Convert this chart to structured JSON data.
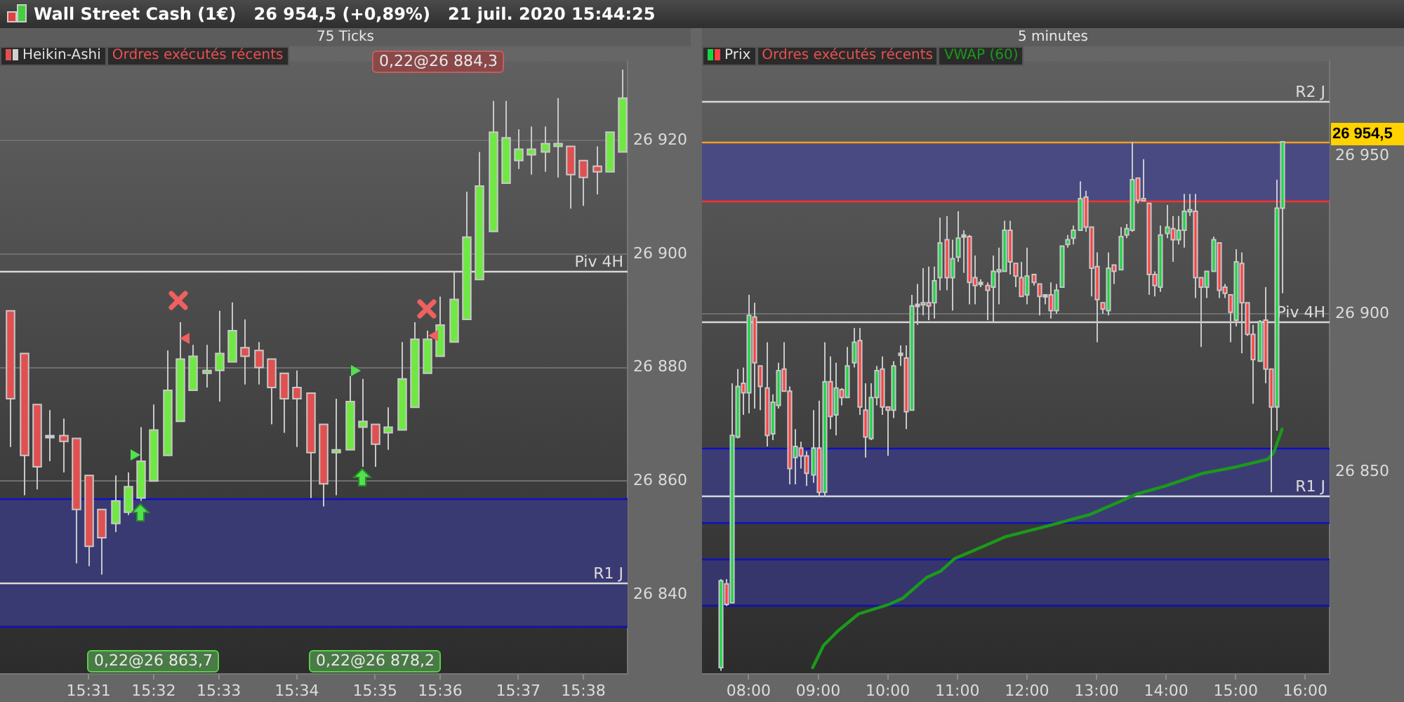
{
  "chart_data": [
    {
      "type": "candlestick",
      "title": "Wall Street Cash (1€)   26 954,5 (+0,89%)   21 juil. 2020 15:44:25",
      "subtitle": "75 Ticks",
      "categories": [
        null,
        null,
        null,
        null,
        null,
        null,
        "15:31",
        null,
        null,
        null,
        null,
        "15:32",
        null,
        null,
        null,
        null,
        "15:33",
        null,
        null,
        null,
        null,
        null,
        "15:34",
        null,
        null,
        null,
        null,
        null,
        "15:35",
        null,
        null,
        null,
        null,
        "15:36",
        null,
        null,
        null,
        null,
        null,
        "15:37",
        null,
        null,
        null,
        null,
        "15:38",
        null,
        null,
        null
      ],
      "series": [
        {
          "name": "Heikin-Ashi",
          "ohlc": [
            [
              26890,
              26890,
              26866,
              26874.5
            ],
            [
              26882.5,
              26882.5,
              26857.5,
              26864.5
            ],
            [
              26873.5,
              26873.5,
              26858.5,
              26862.5
            ],
            [
              26868,
              26872.5,
              26863.5,
              26868
            ],
            [
              26868,
              26871,
              26861.5,
              26867
            ],
            [
              26867.5,
              26867.5,
              26845.5,
              26855
            ],
            [
              26861,
              26861,
              26845,
              26848.5
            ],
            [
              26855,
              26855,
              26843.5,
              26850
            ],
            [
              26852.5,
              26861,
              26851,
              26856.5
            ],
            [
              26854.5,
              26861.5,
              26854,
              26859
            ],
            [
              26857,
              26869.5,
              26856.5,
              26863.5
            ],
            [
              26860,
              26873.5,
              26860,
              26869
            ],
            [
              26864.5,
              26883,
              26864.5,
              26876
            ],
            [
              26870.5,
              26888,
              26870.5,
              26881.5
            ],
            [
              26876,
              26884,
              26876,
              26882
            ],
            [
              26879,
              26884,
              26876.5,
              26879.5
            ],
            [
              26879.5,
              26890,
              26874,
              26882.5
            ],
            [
              26881,
              26891.5,
              26881,
              26886.5
            ],
            [
              26883.5,
              26888.5,
              26877,
              26882
            ],
            [
              26883,
              26884.5,
              26877,
              26880
            ],
            [
              26881.5,
              26881.5,
              26870,
              26876.5
            ],
            [
              26879,
              26879,
              26868.5,
              26874.5
            ],
            [
              26876.5,
              26879.5,
              26866,
              26874.5
            ],
            [
              26875.5,
              26875.5,
              26857,
              26865
            ],
            [
              26870,
              26870,
              26855.5,
              26859.5
            ],
            [
              26865,
              26874.5,
              26857.5,
              26865.5
            ],
            [
              26865.5,
              26878.5,
              26865.5,
              26874
            ],
            [
              26869.5,
              26878,
              26862.5,
              26870.5
            ],
            [
              26870,
              26870,
              26862.5,
              26866.5
            ],
            [
              26868.5,
              26873,
              26865.5,
              26869.5
            ],
            [
              26869,
              26884.5,
              26869,
              26878
            ],
            [
              26873,
              26888,
              26873,
              26885
            ],
            [
              26879,
              26886.5,
              26879,
              26885
            ],
            [
              26882,
              26892.5,
              26882,
              26887.5
            ],
            [
              26884.5,
              26897,
              26884.5,
              26892
            ],
            [
              26888.5,
              26911,
              26888.5,
              26903
            ],
            [
              26895.5,
              26918,
              26895.5,
              26912
            ],
            [
              26904,
              26927,
              26904,
              26921.5
            ],
            [
              26912.5,
              26927,
              26912.5,
              26920.5
            ],
            [
              26916.5,
              26922,
              26915,
              26918.5
            ],
            [
              26917.5,
              26922.5,
              26914,
              26918.5
            ],
            [
              26918,
              26922.5,
              26914.5,
              26919.5
            ],
            [
              26919,
              26927.5,
              26913.5,
              26919.5
            ],
            [
              26919,
              26919,
              26908,
              26914
            ],
            [
              26916.5,
              26916.5,
              26908.5,
              26913.5
            ],
            [
              26915.5,
              26919,
              26910.5,
              26914.5
            ],
            [
              26914.5,
              26921.5,
              26914.5,
              26921.5
            ],
            [
              26918,
              26932.5,
              26918,
              26927.5
            ]
          ],
          "colors": [
            "#e05050",
            "#e05050",
            "#e05050",
            "#d0d0d0",
            "#e05050",
            "#e05050",
            "#e05050",
            "#e05050",
            "#70e844",
            "#70e844",
            "#70e844",
            "#70e844",
            "#70e844",
            "#70e844",
            "#70e844",
            "#70e844",
            "#70e844",
            "#70e844",
            "#e05050",
            "#e05050",
            "#e05050",
            "#e05050",
            "#e05050",
            "#e05050",
            "#e05050",
            "#70e844",
            "#70e844",
            "#70e844",
            "#e05050",
            "#70e844",
            "#70e844",
            "#70e844",
            "#70e844",
            "#70e844",
            "#70e844",
            "#70e844",
            "#70e844",
            "#70e844",
            "#70e844",
            "#70e844",
            "#70e844",
            "#70e844",
            "#70e844",
            "#e05050",
            "#e05050",
            "#e05050",
            "#70e844",
            "#70e844"
          ]
        }
      ],
      "ylim": [
        26826,
        26934
      ],
      "yticks": [
        {
          "value": 26840,
          "label": "26 840"
        },
        {
          "value": 26860,
          "label": "26 860"
        },
        {
          "value": 26880,
          "label": "26 880"
        },
        {
          "value": 26900,
          "label": "26 900"
        },
        {
          "value": 26920,
          "label": "26 920"
        }
      ],
      "grid": "y",
      "legend": "top left",
      "ref_lines": [
        {
          "axis": "y",
          "value": 26897,
          "label": "Piv 4H"
        },
        {
          "axis": "y",
          "value": 26842,
          "label": "R1 J"
        },
        {
          "axis": "y",
          "value": 26857,
          "color": "#1010c0"
        },
        {
          "axis": "y",
          "value": 26834.5,
          "color": "#1010c0"
        }
      ],
      "bands": [
        {
          "axis": "y",
          "from": 26834.5,
          "to": 26857,
          "color": "#3a3a72"
        }
      ],
      "annotations": [
        "Ordres exécutés récents",
        "0,22@26 884,3",
        "0,22@26 863,7",
        "0,22@26 878,2"
      ]
    },
    {
      "type": "candlestick",
      "subtitle": "5 minutes",
      "x": [
        7.5833,
        7.6667,
        7.75,
        7.8333,
        7.9167,
        8,
        8.0833,
        8.1667,
        8.25,
        8.3333,
        8.4167,
        8.5,
        8.5833,
        8.6667,
        8.75,
        8.8333,
        8.9167,
        9,
        9.0833,
        9.1667,
        9.25,
        9.3333,
        9.4167,
        9.5,
        9.5833,
        9.6667,
        9.75,
        9.8333,
        9.9167,
        10,
        10.0833,
        10.1667,
        10.25,
        10.3333,
        10.4167,
        10.5,
        10.5833,
        10.6667,
        10.75,
        10.8333,
        10.9167,
        11,
        11.0833,
        11.1667,
        11.25,
        11.3333,
        11.4167,
        11.5,
        11.5833,
        11.6667,
        11.75,
        11.8333,
        11.9167,
        12,
        12.0833,
        12.1667,
        12.25,
        12.3333,
        12.4167,
        12.5,
        12.5833,
        12.6667,
        12.75,
        12.8333,
        12.9167,
        13,
        13.0833,
        13.1667,
        13.25,
        13.3333,
        13.4167,
        13.5,
        13.5833,
        13.6667,
        13.75,
        13.8333,
        13.9167,
        14,
        14.0833,
        14.1667,
        14.25,
        14.3333,
        14.4167,
        14.5,
        14.5833,
        14.6667,
        14.75,
        14.8333,
        14.9167,
        15,
        15.0833,
        15.1667,
        15.25,
        15.3333,
        15.4167,
        15.5,
        15.5833,
        15.6667
      ],
      "series": [
        {
          "name": "Prix",
          "ohlc": [
            [
              26788,
              26816,
              26787,
              26815.5
            ],
            [
              26814.5,
              26816,
              26807.5,
              26808
            ],
            [
              26808.5,
              26878,
              26808.5,
              26861.5
            ],
            [
              26861,
              26882.5,
              26860.5,
              26877
            ],
            [
              26878,
              26883,
              26868,
              26875
            ],
            [
              26875,
              26906,
              26868.5,
              26899.5
            ],
            [
              26899,
              26903.5,
              26870,
              26884.5
            ],
            [
              26883.5,
              26883.5,
              26869.5,
              26877
            ],
            [
              26876.5,
              26891,
              26858,
              26861.5
            ],
            [
              26862,
              26874.5,
              26860,
              26872
            ],
            [
              26871,
              26884.5,
              26870,
              26882
            ],
            [
              26882.5,
              26891,
              26875.5,
              26875.5
            ],
            [
              26875.5,
              26877,
              26846,
              26851
            ],
            [
              26854.5,
              26863.5,
              26846,
              26858
            ],
            [
              26857.5,
              26859.5,
              26851,
              26855
            ],
            [
              26855,
              26856.5,
              26845.5,
              26849.5
            ],
            [
              26849,
              26869.5,
              26846.5,
              26857.5
            ],
            [
              26857.5,
              26872.5,
              26842,
              26843.5
            ],
            [
              26843.5,
              26891,
              26842,
              26878.5
            ],
            [
              26878.5,
              26886.5,
              26863.5,
              26867.5
            ],
            [
              26868,
              26884.5,
              26861.5,
              26876.5
            ],
            [
              26876,
              26876.5,
              26871,
              26873.5
            ],
            [
              26873.5,
              26889.5,
              26873.5,
              26883.5
            ],
            [
              26884.5,
              26895.5,
              26883,
              26891
            ],
            [
              26891.5,
              26895.5,
              26868,
              26870.5
            ],
            [
              26869.5,
              26878,
              26854.5,
              26861
            ],
            [
              26860.5,
              26878,
              26860,
              26873.5
            ],
            [
              26873.5,
              26883.5,
              26871,
              26882
            ],
            [
              26882.5,
              26886.5,
              26868,
              26870.5
            ],
            [
              26870.5,
              26870.5,
              26855,
              26869.5
            ],
            [
              26869.5,
              26885,
              26867,
              26883.5
            ],
            [
              26887.5,
              26890,
              26883.5,
              26887.5
            ],
            [
              26886,
              26890,
              26863.5,
              26869
            ],
            [
              26869.5,
              26906,
              26869.5,
              26902.5
            ],
            [
              26903,
              26909.5,
              26896.5,
              26903
            ],
            [
              26903,
              26914.5,
              26899.5,
              26903.5
            ],
            [
              26903.5,
              26915,
              26898,
              26902.5
            ],
            [
              26903.5,
              26915,
              26898.5,
              26910.5
            ],
            [
              26911.5,
              26930.5,
              26907.5,
              26922.5
            ],
            [
              26923.5,
              26931,
              26907.5,
              26911.5
            ],
            [
              26911.5,
              26923.5,
              26901,
              26917.5
            ],
            [
              26918,
              26932.5,
              26916.5,
              26924
            ],
            [
              26925,
              26926.5,
              26913,
              26925
            ],
            [
              26924.5,
              26925,
              26903,
              26910
            ],
            [
              26911.5,
              26918.5,
              26903,
              26909
            ],
            [
              26910,
              26911,
              26908.5,
              26910
            ],
            [
              26909,
              26910,
              26898,
              26907.5
            ],
            [
              26908.5,
              26918.5,
              26897.5,
              26913.5
            ],
            [
              26913.5,
              26921,
              26903,
              26914
            ],
            [
              26913.5,
              26929.5,
              26913.5,
              26926.5
            ],
            [
              26926.5,
              26929.5,
              26912.5,
              26916.5
            ],
            [
              26916,
              26916,
              26908.5,
              26912
            ],
            [
              26911.5,
              26916.5,
              26905.5,
              26905.5
            ],
            [
              26906,
              26921,
              26903,
              26912
            ],
            [
              26912.5,
              26912.5,
              26909,
              26910
            ],
            [
              26909.5,
              26909.5,
              26899.5,
              26905.5
            ],
            [
              26906,
              26906,
              26903,
              26906
            ],
            [
              26906,
              26910,
              26898.5,
              26901
            ],
            [
              26901,
              26909.5,
              26900,
              26907.5
            ],
            [
              26908.5,
              26921.5,
              26908.5,
              26921.5
            ],
            [
              26922,
              26925,
              26921,
              26923.5
            ],
            [
              26924,
              26928,
              26922,
              26926.5
            ],
            [
              26926.5,
              26942,
              26926.5,
              26936.5
            ],
            [
              26937,
              26939,
              26926,
              26927.5
            ],
            [
              26927.5,
              26927.5,
              26905.5,
              26914.5
            ],
            [
              26915,
              26919.5,
              26891,
              26904.5
            ],
            [
              26903.5,
              26903.5,
              26900,
              26901.5
            ],
            [
              26901,
              26919.5,
              26899.5,
              26914.5
            ],
            [
              26915.5,
              26915.5,
              26909.5,
              26913.5
            ],
            [
              26914,
              26927.5,
              26914,
              26924.5
            ],
            [
              26925,
              26928.5,
              26924,
              26927
            ],
            [
              26926.5,
              26954.5,
              26926,
              26942.5
            ],
            [
              26943,
              26943,
              26935,
              26936
            ],
            [
              26936.5,
              26949,
              26936,
              26936
            ],
            [
              26935,
              26935,
              26906,
              26912.5
            ],
            [
              26912.5,
              26913.5,
              26905.5,
              26909
            ],
            [
              26908.5,
              26928,
              26907,
              26925
            ],
            [
              26925.5,
              26934.5,
              26924,
              26927.5
            ],
            [
              26927,
              26931,
              26916.5,
              26923.5
            ],
            [
              26923.5,
              26931,
              26922,
              26926.5
            ],
            [
              26926.5,
              26938,
              26921,
              26932.5
            ],
            [
              26932.5,
              26938,
              26931,
              26933
            ],
            [
              26932.5,
              26938,
              26905,
              26911.5
            ],
            [
              26911.5,
              26911.5,
              26889.5,
              26908.5
            ],
            [
              26908.5,
              26913.5,
              26905,
              26913.5
            ],
            [
              26913.5,
              26924.5,
              26913.5,
              26923.5
            ],
            [
              26922.5,
              26922.5,
              26905,
              26907.5
            ],
            [
              26908.5,
              26909.5,
              26905,
              26906.5
            ],
            [
              26906,
              26906,
              26891,
              26900.5
            ],
            [
              26898,
              26920.5,
              26896,
              26916.5
            ],
            [
              26916,
              26919.5,
              26887.5,
              26903.5
            ],
            [
              26903.5,
              26903.5,
              26893,
              26893.5
            ],
            [
              26893.5,
              26896.5,
              26871.5,
              26885.5
            ],
            [
              26885,
              26898,
              26885,
              26897.5
            ],
            [
              26898,
              26908.5,
              26878,
              26882.5
            ],
            [
              26882.5,
              26882.5,
              26843.5,
              26870.5
            ],
            [
              26870.5,
              26942.5,
              26863,
              26933.5
            ],
            [
              26933.5,
              26954.5,
              26906.5,
              26954.5
            ]
          ],
          "colors": [
            "#19d742",
            "#ff4040",
            "#19d742",
            "#19d742",
            "#ff4040",
            "#19d742",
            "#ff4040",
            "#ff4040",
            "#ff4040",
            "#19d742",
            "#19d742",
            "#ff4040",
            "#ff4040",
            "#19d742",
            "#ff4040",
            "#ff4040",
            "#19d742",
            "#ff4040",
            "#19d742",
            "#ff4040",
            "#19d742",
            "#ff4040",
            "#19d742",
            "#19d742",
            "#ff4040",
            "#ff4040",
            "#19d742",
            "#19d742",
            "#ff4040",
            "#ff4040",
            "#19d742",
            "#d0d0d0",
            "#ff4040",
            "#19d742",
            "#d0d0d0",
            "#19d742",
            "#ff4040",
            "#19d742",
            "#19d742",
            "#ff4040",
            "#19d742",
            "#19d742",
            "#d0d0d0",
            "#ff4040",
            "#ff4040",
            "#d0d0d0",
            "#ff4040",
            "#19d742",
            "#19d742",
            "#19d742",
            "#ff4040",
            "#ff4040",
            "#ff4040",
            "#19d742",
            "#ff4040",
            "#ff4040",
            "#d0d0d0",
            "#ff4040",
            "#19d742",
            "#19d742",
            "#19d742",
            "#19d742",
            "#19d742",
            "#ff4040",
            "#ff4040",
            "#ff4040",
            "#ff4040",
            "#19d742",
            "#ff4040",
            "#19d742",
            "#19d742",
            "#19d742",
            "#ff4040",
            "#ff4040",
            "#ff4040",
            "#ff4040",
            "#19d742",
            "#19d742",
            "#ff4040",
            "#19d742",
            "#19d742",
            "#19d742",
            "#ff4040",
            "#ff4040",
            "#19d742",
            "#19d742",
            "#ff4040",
            "#ff4040",
            "#ff4040",
            "#19d742",
            "#ff4040",
            "#ff4040",
            "#ff4040",
            "#19d742",
            "#ff4040",
            "#ff4040",
            "#19d742",
            "#19d742"
          ]
        },
        {
          "name": "VWAP (60)",
          "type": "line",
          "color": "#1a9a1a",
          "x": [
            8.921,
            9.076,
            9.278,
            9.581,
            10.017,
            10.218,
            10.555,
            10.757,
            10.959,
            11.228,
            11.699,
            12.236,
            12.573,
            12.91,
            13.38,
            13.582,
            13.986,
            14.121,
            14.524,
            14.995,
            15.465,
            15.546,
            15.667
          ],
          "values": [
            26788,
            26795,
            26799.5,
            26805,
            26808,
            26810,
            26816.5,
            26818.5,
            26822.5,
            26825,
            26829.5,
            26832.5,
            26834.5,
            26836.5,
            26841,
            26843,
            26845.5,
            26846.5,
            26849.5,
            26851.5,
            26854,
            26856,
            26863.5
          ]
        }
      ],
      "xlim": [
        7.33,
        16.35
      ],
      "xticks": [
        {
          "value": 8,
          "label": "08:00"
        },
        {
          "value": 9,
          "label": "09:00"
        },
        {
          "value": 10,
          "label": "10:00"
        },
        {
          "value": 11,
          "label": "11:00"
        },
        {
          "value": 12,
          "label": "12:00"
        },
        {
          "value": 13,
          "label": "13:00"
        },
        {
          "value": 14,
          "label": "14:00"
        },
        {
          "value": 15,
          "label": "15:00"
        },
        {
          "value": 16,
          "label": "16:00"
        }
      ],
      "ylim": [
        26786,
        26980
      ],
      "yticks": [
        {
          "value": 26850,
          "label": "26 850"
        },
        {
          "value": 26900,
          "label": "26 900"
        },
        {
          "value": 26950,
          "label": "26 950"
        }
      ],
      "grid": "y",
      "legend": "top left",
      "ref_lines": [
        {
          "axis": "y",
          "value": 26967.5,
          "label": "R2 J"
        },
        {
          "axis": "y",
          "value": 26897.5,
          "label": "Piv 4H"
        },
        {
          "axis": "y",
          "value": 26842.5,
          "label": "R1 J"
        },
        {
          "axis": "y",
          "value": 26954.5,
          "label": "26 954,5",
          "color": "#f0a020"
        },
        {
          "axis": "y",
          "value": 26857.5,
          "color": "#1010c0"
        },
        {
          "axis": "y",
          "value": 26834,
          "color": "#1010c0"
        },
        {
          "axis": "y",
          "value": 26822.5,
          "color": "#1010c0"
        },
        {
          "axis": "y",
          "value": 26808,
          "color": "#1010c0"
        },
        {
          "axis": "y",
          "value": 26936,
          "color": "#ff3030"
        }
      ],
      "bands": [
        {
          "axis": "y",
          "from": 26834,
          "to": 26857.5,
          "color": "#3c3c74"
        },
        {
          "axis": "y",
          "from": 26808,
          "to": 26822.5,
          "color": "#36366c"
        },
        {
          "axis": "y",
          "from": 26936,
          "to": 26954.5,
          "color": "#4a4a82"
        }
      ],
      "annotations": [
        "Ordres exécutés récents"
      ]
    }
  ]
}
